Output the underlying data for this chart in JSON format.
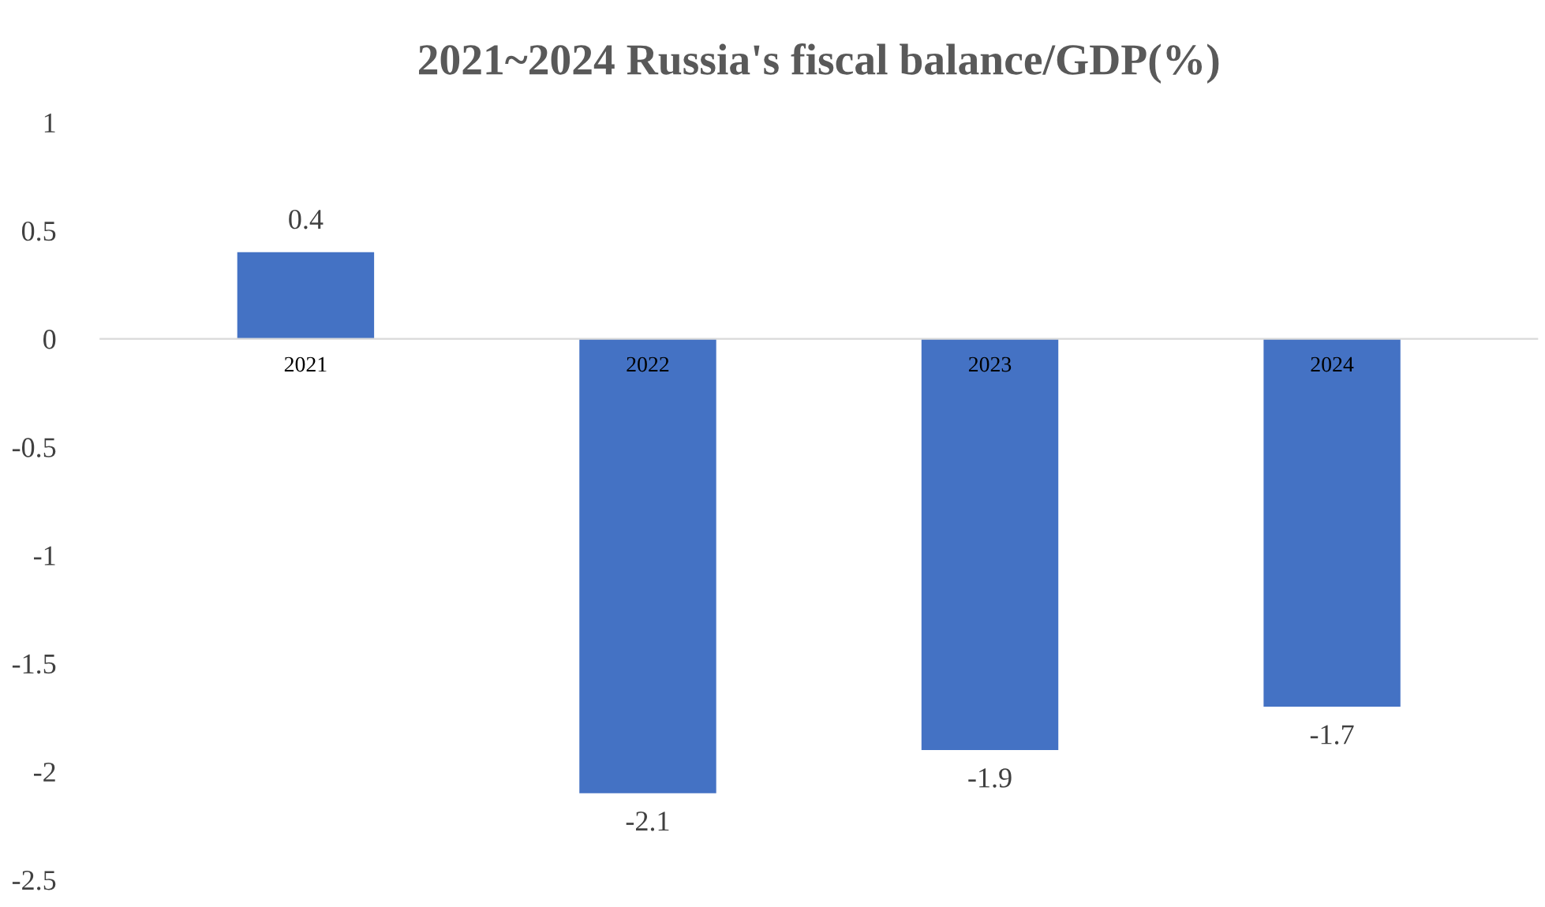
{
  "chart_data": {
    "type": "bar",
    "title": "2021~2024 Russia's fiscal balance/GDP(%)",
    "categories": [
      "2021",
      "2022",
      "2023",
      "2024"
    ],
    "values": [
      0.4,
      -2.1,
      -1.9,
      -1.7
    ],
    "color": "#4472c4",
    "ylim": [
      -2.5,
      1
    ],
    "yticks": [
      -2.5,
      -2,
      -1.5,
      -1,
      -0.5,
      0,
      0.5,
      1
    ],
    "data_labels": true,
    "grid": false,
    "legend": false
  }
}
